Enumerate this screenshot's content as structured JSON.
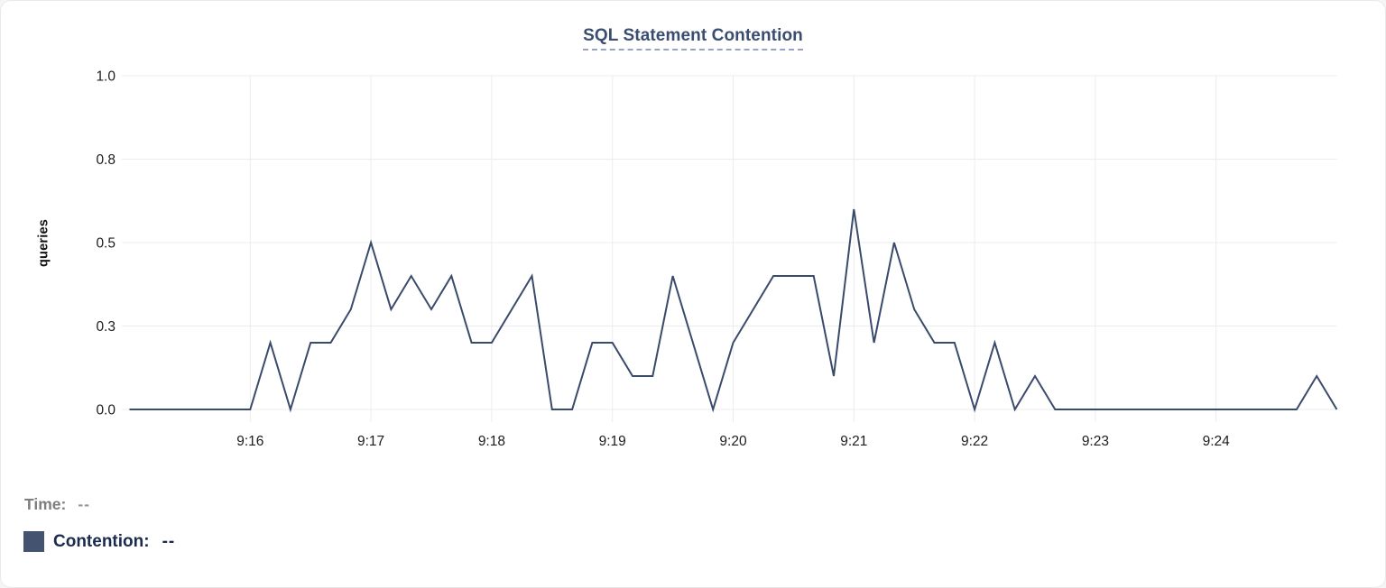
{
  "chart_data": {
    "type": "line",
    "title": "SQL Statement Contention",
    "xlabel": "",
    "ylabel": "queries",
    "ylim": [
      0,
      1
    ],
    "grid": true,
    "legend_position": "bottom",
    "y_ticks": [
      {
        "value": 0,
        "label": "0.0"
      },
      {
        "value": 0.25,
        "label": "0.3"
      },
      {
        "value": 0.5,
        "label": "0.5"
      },
      {
        "value": 0.75,
        "label": "0.8"
      },
      {
        "value": 1,
        "label": "1.0"
      }
    ],
    "x_ticks": [
      "9:16",
      "9:17",
      "9:18",
      "9:19",
      "9:20",
      "9:21",
      "9:22",
      "9:23",
      "9:24"
    ],
    "x_start": "9:15:00",
    "x_end": "9:25:00",
    "interval_seconds": 10,
    "series": [
      {
        "name": "Contention",
        "color": "#3a4a6b",
        "times": [
          "9:15:00",
          "9:15:10",
          "9:15:20",
          "9:15:30",
          "9:15:40",
          "9:15:50",
          "9:16:00",
          "9:16:10",
          "9:16:20",
          "9:16:30",
          "9:16:40",
          "9:16:50",
          "9:17:00",
          "9:17:10",
          "9:17:20",
          "9:17:30",
          "9:17:40",
          "9:17:50",
          "9:18:00",
          "9:18:10",
          "9:18:20",
          "9:18:30",
          "9:18:40",
          "9:18:50",
          "9:19:00",
          "9:19:10",
          "9:19:20",
          "9:19:30",
          "9:19:40",
          "9:19:50",
          "9:20:00",
          "9:20:10",
          "9:20:20",
          "9:20:30",
          "9:20:40",
          "9:20:50",
          "9:21:00",
          "9:21:10",
          "9:21:20",
          "9:21:30",
          "9:21:40",
          "9:21:50",
          "9:22:00",
          "9:22:10",
          "9:22:20",
          "9:22:30",
          "9:22:40",
          "9:22:50",
          "9:23:00",
          "9:23:10",
          "9:23:20",
          "9:23:30",
          "9:23:40",
          "9:23:50",
          "9:24:00",
          "9:24:10",
          "9:24:20",
          "9:24:30",
          "9:24:40",
          "9:24:50",
          "9:25:00"
        ],
        "values": [
          0,
          0,
          0,
          0,
          0,
          0,
          0,
          0.2,
          0,
          0.2,
          0.2,
          0.3,
          0.5,
          0.3,
          0.4,
          0.3,
          0.4,
          0.2,
          0.2,
          0.3,
          0.4,
          0,
          0,
          0.2,
          0.2,
          0.1,
          0.1,
          0.4,
          0.2,
          0,
          0.2,
          0.3,
          0.4,
          0.4,
          0.4,
          0.1,
          0.6,
          0.2,
          0.5,
          0.3,
          0.2,
          0.2,
          0,
          0.2,
          0,
          0.1,
          0,
          0,
          0,
          0,
          0,
          0,
          0,
          0,
          0,
          0,
          0,
          0,
          0,
          0.1,
          0
        ]
      }
    ]
  },
  "readout": {
    "time_label": "Time:",
    "time_value": "--",
    "contention_label": "Contention:",
    "contention_value": "--"
  },
  "colors": {
    "title": "#3a4d71",
    "title_underline": "#98a2c7",
    "series_line": "#3a4a6b",
    "legend_swatch": "#44536f",
    "grid": "#ececec",
    "axis_text": "#1d1d1f",
    "time_label": "#7d7d82",
    "time_value": "#94949a",
    "contention_text": "#1b2b4d"
  }
}
